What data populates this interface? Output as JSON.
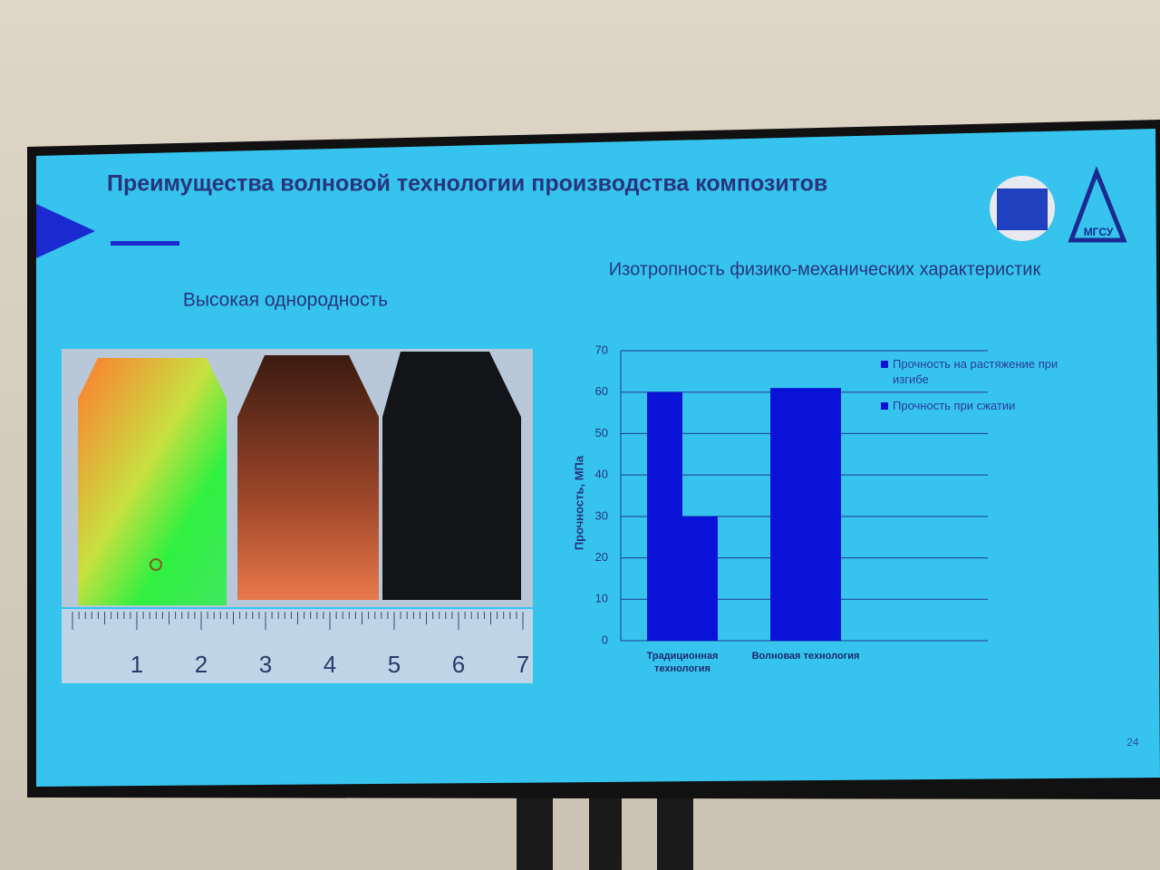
{
  "slide_title": "Преимущества волновой технологии производства композитов",
  "left_heading": "Высокая однородность",
  "ruler_labels": [
    "1",
    "2",
    "3",
    "4",
    "5",
    "6",
    "7"
  ],
  "logo_text": "МГСУ",
  "page_number": "24",
  "chart_data": {
    "type": "bar",
    "title": "Изотропность физико-механических характеристик",
    "y_label": "Прочность, МПа",
    "categories": [
      "Традиционная технология",
      "Волновая технология"
    ],
    "series": [
      {
        "name": "Прочность на растяжение при изгибе",
        "color": "#0b12d8",
        "values": [
          60,
          61
        ]
      },
      {
        "name": "Прочность при сжатии",
        "color": "#0b12d8",
        "values": [
          30,
          61
        ]
      }
    ],
    "ylim": [
      0,
      70
    ],
    "yticks": [
      0,
      10,
      20,
      30,
      40,
      50,
      60,
      70
    ],
    "grid": true
  }
}
